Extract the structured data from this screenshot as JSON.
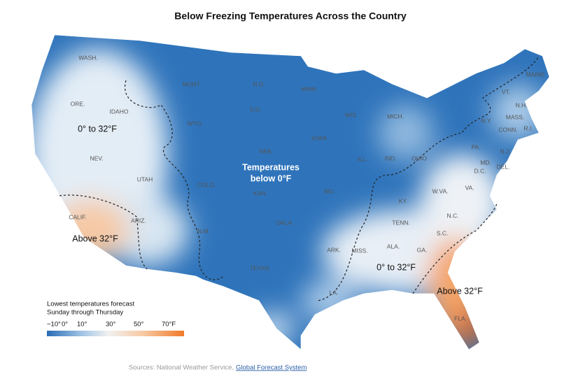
{
  "header": {
    "title": "Below Freezing Temperatures Across the Country"
  },
  "map": {
    "state_labels": [
      "WASH.",
      "ORE.",
      "IDAHO",
      "MONT.",
      "WYO.",
      "N.D.",
      "S.D.",
      "MINN.",
      "WIS.",
      "MICH.",
      "IOWA",
      "NEB.",
      "NEV.",
      "UTAH",
      "COLO.",
      "KAN.",
      "MO.",
      "ILL.",
      "IND.",
      "OHIO",
      "CALIF.",
      "ARIZ.",
      "N.M.",
      "OKLA.",
      "ARK.",
      "TENN.",
      "KY.",
      "W.VA.",
      "VA.",
      "N.C.",
      "S.C.",
      "GA.",
      "ALA.",
      "MISS.",
      "LA.",
      "TEXAS",
      "FLA.",
      "PA.",
      "N.Y.",
      "VT.",
      "N.H.",
      "MAINE",
      "MASS.",
      "CONN.",
      "R.I.",
      "N.J.",
      "MD.",
      "D.C.",
      "DEL."
    ],
    "region_labels": [
      "0° to 32°F",
      "Temperatures",
      "below 0°F",
      "Above 32°F",
      "0° to 32°F",
      "Above 32°F"
    ]
  },
  "legend": {
    "title_lines": [
      "Lowest temperatures forecast",
      "Sunday through Thursday"
    ],
    "ticks": [
      "−10°",
      "0°",
      "10°",
      "30°",
      "50°",
      "70°F"
    ]
  },
  "footer": {
    "sources": "Sources: National Weather Service,",
    "link": "Global Forecast System"
  }
}
